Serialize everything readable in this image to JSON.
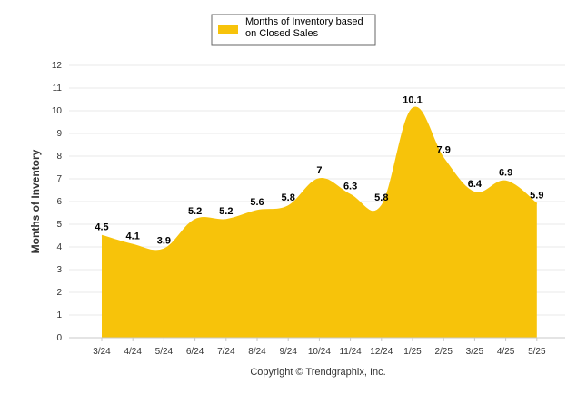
{
  "chart_data": {
    "type": "area",
    "categories": [
      "3/24",
      "4/24",
      "5/24",
      "6/24",
      "7/24",
      "8/24",
      "9/24",
      "10/24",
      "11/24",
      "12/24",
      "1/25",
      "2/25",
      "3/25",
      "4/25",
      "5/25"
    ],
    "series": [
      {
        "name": "Months of Inventory based on Closed Sales",
        "values": [
          4.5,
          4.1,
          3.9,
          5.2,
          5.2,
          5.6,
          5.8,
          7,
          6.3,
          5.8,
          10.1,
          7.9,
          6.4,
          6.9,
          5.9
        ],
        "labels": [
          "4.5",
          "4.1",
          "3.9",
          "5.2",
          "5.2",
          "5.6",
          "5.8",
          "7",
          "6.3",
          "5.8",
          "10.1",
          "7.9",
          "6.4",
          "6.9",
          "5.9"
        ]
      }
    ],
    "ylabel": "Months of Inventory",
    "xlabel": "",
    "ylim": [
      0,
      12
    ],
    "yticks": [
      "0",
      "1",
      "2",
      "3",
      "4",
      "5",
      "6",
      "7",
      "8",
      "9",
      "10",
      "11",
      "12"
    ],
    "grid": true,
    "legend_position": "top-center",
    "colors": {
      "area": "#F7C30A",
      "grid": "#e8e8e8"
    }
  },
  "legend": {
    "line1": "Months of Inventory based",
    "line2": "on Closed Sales"
  },
  "footer": {
    "copyright": "Copyright © Trendgraphix, Inc."
  }
}
